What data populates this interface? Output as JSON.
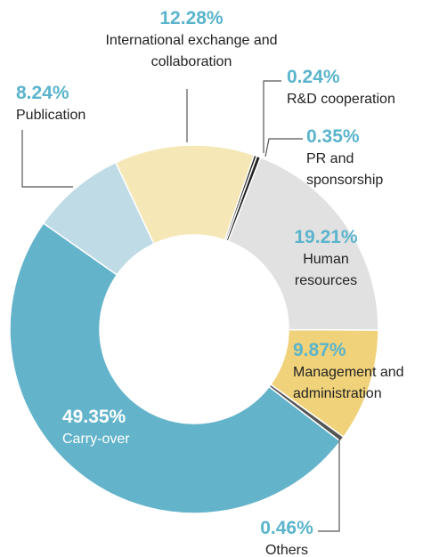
{
  "chart_data": {
    "type": "donut",
    "categories": [
      "R&D cooperation",
      "PR and sponsorship",
      "Human resources",
      "Management and administration",
      "Others",
      "Carry-over",
      "Publication",
      "International exchange and collaboration"
    ],
    "values": [
      0.24,
      0.35,
      19.21,
      9.87,
      0.46,
      49.35,
      8.24,
      12.28
    ],
    "value_labels": [
      "0.24%",
      "0.35%",
      "19.21%",
      "9.87%",
      "0.46%",
      "49.35%",
      "8.24%",
      "12.28%"
    ],
    "colors": [
      "#222222",
      "#222222",
      "#e1e1e1",
      "#f0d27a",
      "#555555",
      "#63b4ca",
      "#bedbe6",
      "#f6e7b6"
    ]
  }
}
